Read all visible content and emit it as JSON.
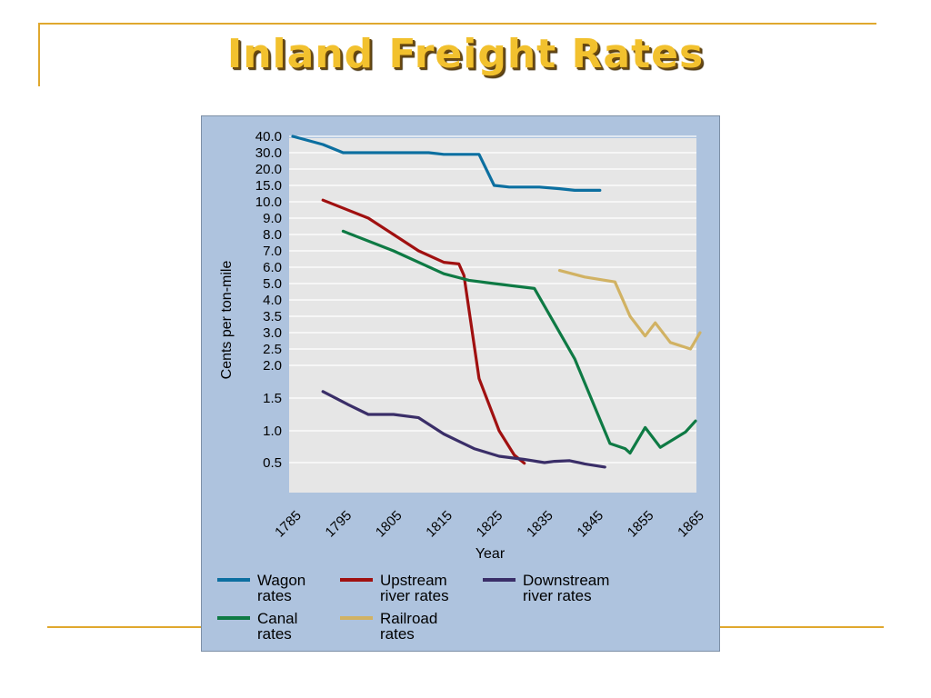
{
  "slide": {
    "title": "Inland Freight Rates",
    "accent_color": "#e0a82e",
    "title_color": "#f2c12e"
  },
  "chart_data": {
    "type": "line",
    "xlabel": "Year",
    "ylabel": "Cents per ton-mile",
    "x_ticks": [
      "1785",
      "1795",
      "1805",
      "1815",
      "1825",
      "1835",
      "1845",
      "1855",
      "1865"
    ],
    "y_ticks": [
      "0.5",
      "1.0",
      "1.5",
      "2.0",
      "2.5",
      "3.0",
      "3.5",
      "4.0",
      "5.0",
      "6.0",
      "7.0",
      "8.0",
      "9.0",
      "10.0",
      "15.0",
      "20.0",
      "30.0",
      "40.0"
    ],
    "xlim": [
      1785,
      1865
    ],
    "grid": true,
    "background": "#e6e6e6",
    "series": [
      {
        "key": "wagon",
        "legend_line1": "Wagon",
        "legend_line2": "rates",
        "color": "#0c6fa0",
        "points": [
          [
            1785,
            40.0
          ],
          [
            1791,
            35.0
          ],
          [
            1795,
            30.0
          ],
          [
            1803,
            30.0
          ],
          [
            1812,
            30.0
          ],
          [
            1815,
            29.0
          ],
          [
            1822,
            29.0
          ],
          [
            1825,
            15.0
          ],
          [
            1828,
            14.5
          ],
          [
            1834,
            14.5
          ],
          [
            1838,
            14.0
          ],
          [
            1841,
            13.5
          ],
          [
            1846,
            13.5
          ]
        ]
      },
      {
        "key": "upstream",
        "legend_line1": "Upstream",
        "legend_line2": "river rates",
        "color": "#a01010",
        "points": [
          [
            1791,
            10.5
          ],
          [
            1800,
            9.0
          ],
          [
            1805,
            8.0
          ],
          [
            1810,
            7.0
          ],
          [
            1815,
            6.3
          ],
          [
            1818,
            6.2
          ],
          [
            1819,
            5.5
          ],
          [
            1822,
            1.8
          ],
          [
            1826,
            1.0
          ],
          [
            1829,
            0.62
          ],
          [
            1831,
            0.49
          ]
        ]
      },
      {
        "key": "downstream",
        "legend_line1": "Downstream",
        "legend_line2": "river rates",
        "color": "#3a2e68",
        "points": [
          [
            1791,
            1.6
          ],
          [
            1796,
            1.4
          ],
          [
            1800,
            1.25
          ],
          [
            1805,
            1.25
          ],
          [
            1810,
            1.2
          ],
          [
            1815,
            0.95
          ],
          [
            1821,
            0.72
          ],
          [
            1826,
            0.6
          ],
          [
            1831,
            0.55
          ],
          [
            1835,
            0.5
          ],
          [
            1837,
            0.52
          ],
          [
            1840,
            0.53
          ],
          [
            1843,
            0.48
          ],
          [
            1847,
            0.43
          ]
        ]
      },
      {
        "key": "canal",
        "legend_line1": "Canal",
        "legend_line2": "rates",
        "color": "#0e7a44",
        "points": [
          [
            1795,
            8.2
          ],
          [
            1805,
            7.0
          ],
          [
            1815,
            5.6
          ],
          [
            1820,
            5.2
          ],
          [
            1825,
            5.0
          ],
          [
            1833,
            4.7
          ],
          [
            1841,
            2.2
          ],
          [
            1848,
            0.8
          ],
          [
            1851,
            0.72
          ],
          [
            1852,
            0.65
          ],
          [
            1855,
            1.05
          ],
          [
            1858,
            0.74
          ],
          [
            1863,
            0.98
          ],
          [
            1865,
            1.15
          ]
        ]
      },
      {
        "key": "railroad",
        "legend_line1": "Railroad",
        "legend_line2": "rates",
        "color": "#d1b263",
        "points": [
          [
            1838,
            5.8
          ],
          [
            1843,
            5.4
          ],
          [
            1849,
            5.1
          ],
          [
            1852,
            3.5
          ],
          [
            1855,
            2.9
          ],
          [
            1857,
            3.3
          ],
          [
            1860,
            2.7
          ],
          [
            1864,
            2.5
          ],
          [
            1866,
            3.0
          ]
        ]
      }
    ]
  }
}
